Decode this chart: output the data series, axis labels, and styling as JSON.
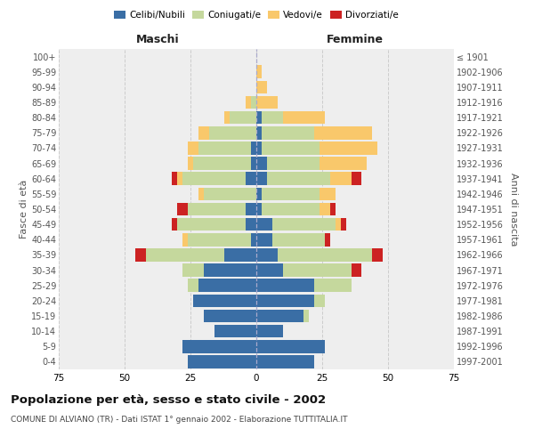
{
  "age_groups": [
    "0-4",
    "5-9",
    "10-14",
    "15-19",
    "20-24",
    "25-29",
    "30-34",
    "35-39",
    "40-44",
    "45-49",
    "50-54",
    "55-59",
    "60-64",
    "65-69",
    "70-74",
    "75-79",
    "80-84",
    "85-89",
    "90-94",
    "95-99",
    "100+"
  ],
  "birth_years": [
    "1997-2001",
    "1992-1996",
    "1987-1991",
    "1982-1986",
    "1977-1981",
    "1972-1976",
    "1967-1971",
    "1962-1966",
    "1957-1961",
    "1952-1956",
    "1947-1951",
    "1942-1946",
    "1937-1941",
    "1932-1936",
    "1927-1931",
    "1922-1926",
    "1917-1921",
    "1912-1916",
    "1907-1911",
    "1902-1906",
    "≤ 1901"
  ],
  "maschi": {
    "celibi": [
      26,
      28,
      16,
      20,
      24,
      22,
      20,
      12,
      2,
      4,
      4,
      0,
      4,
      2,
      2,
      0,
      0,
      0,
      0,
      0,
      0
    ],
    "coniugati": [
      0,
      0,
      0,
      0,
      0,
      4,
      8,
      30,
      24,
      26,
      22,
      20,
      24,
      22,
      20,
      18,
      10,
      2,
      0,
      0,
      0
    ],
    "vedovi": [
      0,
      0,
      0,
      0,
      0,
      0,
      0,
      0,
      2,
      0,
      0,
      2,
      2,
      2,
      4,
      4,
      2,
      2,
      0,
      0,
      0
    ],
    "divorziati": [
      0,
      0,
      0,
      0,
      0,
      0,
      0,
      4,
      0,
      2,
      4,
      0,
      2,
      0,
      0,
      0,
      0,
      0,
      0,
      0,
      0
    ]
  },
  "femmine": {
    "nubili": [
      22,
      26,
      10,
      18,
      22,
      22,
      10,
      8,
      6,
      6,
      2,
      2,
      4,
      4,
      2,
      2,
      2,
      0,
      0,
      0,
      0
    ],
    "coniugate": [
      0,
      0,
      0,
      2,
      4,
      14,
      26,
      36,
      20,
      24,
      22,
      22,
      24,
      20,
      22,
      20,
      8,
      0,
      0,
      0,
      0
    ],
    "vedove": [
      0,
      0,
      0,
      0,
      0,
      0,
      0,
      0,
      0,
      2,
      4,
      6,
      8,
      18,
      22,
      22,
      16,
      8,
      4,
      2,
      0
    ],
    "divorziate": [
      0,
      0,
      0,
      0,
      0,
      0,
      4,
      4,
      2,
      2,
      2,
      0,
      4,
      0,
      0,
      0,
      0,
      0,
      0,
      0,
      0
    ]
  },
  "color_celibi": "#3a6ea5",
  "color_coniugati": "#c5d89d",
  "color_vedovi": "#f9c86b",
  "color_divorziati": "#cc2222",
  "title": "Popolazione per età, sesso e stato civile - 2002",
  "subtitle": "COMUNE DI ALVIANO (TR) - Dati ISTAT 1° gennaio 2002 - Elaborazione TUTTITALIA.IT",
  "xlabel_left": "Maschi",
  "xlabel_right": "Femmine",
  "ylabel_left": "Fasce di età",
  "ylabel_right": "Anni di nascita",
  "xlim": 75,
  "bg_color": "#ffffff",
  "plot_bg_color": "#eeeeee",
  "grid_color": "#cccccc"
}
